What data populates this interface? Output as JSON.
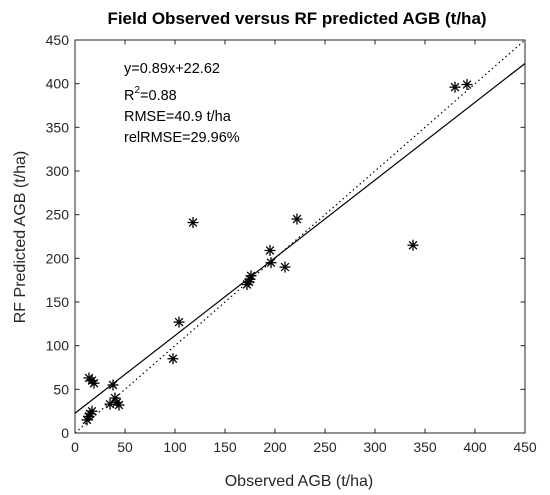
{
  "chart_data": {
    "type": "scatter",
    "title": "Field Observed versus RF predicted AGB (t/ha)",
    "xlabel": "Observed AGB (t/ha)",
    "ylabel": "RF Predicted AGB (t/ha)",
    "xlim": [
      0,
      450
    ],
    "ylim": [
      0,
      450
    ],
    "xticks": [
      0,
      50,
      100,
      150,
      200,
      250,
      300,
      350,
      400,
      450
    ],
    "yticks": [
      0,
      50,
      100,
      150,
      200,
      250,
      300,
      350,
      400,
      450
    ],
    "grid": false,
    "marker": "asterisk",
    "points": [
      {
        "x": 12,
        "y": 15
      },
      {
        "x": 14,
        "y": 19
      },
      {
        "x": 15,
        "y": 22
      },
      {
        "x": 17,
        "y": 25
      },
      {
        "x": 14,
        "y": 63
      },
      {
        "x": 17,
        "y": 60
      },
      {
        "x": 19,
        "y": 57
      },
      {
        "x": 35,
        "y": 33
      },
      {
        "x": 38,
        "y": 55
      },
      {
        "x": 40,
        "y": 40
      },
      {
        "x": 42,
        "y": 35
      },
      {
        "x": 44,
        "y": 32
      },
      {
        "x": 98,
        "y": 85
      },
      {
        "x": 104,
        "y": 127
      },
      {
        "x": 118,
        "y": 241
      },
      {
        "x": 172,
        "y": 170
      },
      {
        "x": 174,
        "y": 173
      },
      {
        "x": 175,
        "y": 176
      },
      {
        "x": 176,
        "y": 180
      },
      {
        "x": 195,
        "y": 209
      },
      {
        "x": 196,
        "y": 195
      },
      {
        "x": 210,
        "y": 190
      },
      {
        "x": 222,
        "y": 245
      },
      {
        "x": 338,
        "y": 215
      },
      {
        "x": 380,
        "y": 396
      },
      {
        "x": 392,
        "y": 399
      }
    ],
    "lines": [
      {
        "type": "fit",
        "style": "solid",
        "slope": 0.89,
        "intercept": 22.62
      },
      {
        "type": "1:1",
        "style": "dotted",
        "slope": 1,
        "intercept": 0
      }
    ],
    "annotations": {
      "equation": "y=0.89x+22.62",
      "r2_prefix": "R",
      "r2_sup": "2",
      "r2_value": "=0.88",
      "rmse": "RMSE=40.9 t/ha",
      "relrmse": "relRMSE=29.96%"
    },
    "colors": {
      "marker": "#000000",
      "axis": "#262626",
      "line": "#000000"
    }
  }
}
